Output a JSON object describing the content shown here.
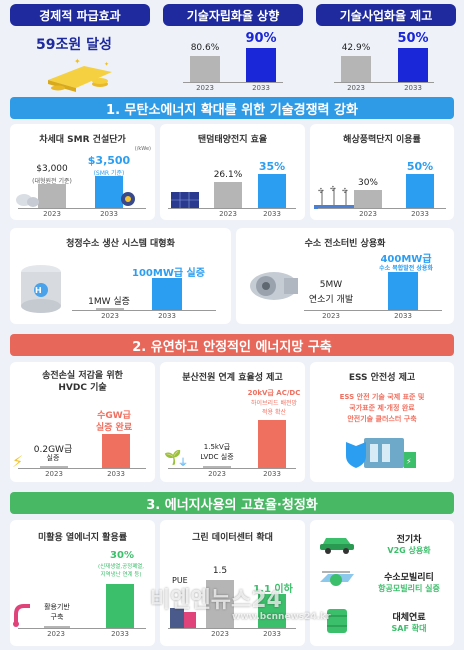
{
  "colors": {
    "navy": "#1e2a9e",
    "blue_band": "#2f9be6",
    "red_band": "#e7685a",
    "green_band": "#49b864",
    "blue_bar": "#2c9ef2",
    "red_bar": "#f07060",
    "green_bar": "#3cbf6b",
    "grey_bar": "#b5b5b5",
    "bright_blue": "#1a27d8"
  },
  "top": {
    "economic": {
      "label": "경제적 파급효과",
      "value": "59조원 달성"
    },
    "independence": {
      "label": "기술자립화율 상향",
      "before": "80.6%",
      "after": "90%",
      "y1": "2023",
      "y2": "2033"
    },
    "commercial": {
      "label": "기술사업화율 제고",
      "before": "42.9%",
      "after": "50%",
      "y1": "2023",
      "y2": "2033"
    }
  },
  "sections": [
    "1. 무탄소에너지 확대를 위한 기술경쟁력 강화",
    "2. 유연하고 안정적인 에너지망 구축",
    "3. 에너지사용의 고효율·청정화"
  ],
  "s1": {
    "smr": {
      "title": "차세대 SMR 건설단가",
      "unit": "(/kWe)",
      "v1": "$3,000",
      "v1_note": "(대형원전 기준)",
      "v2": "$3,500",
      "v2_note": "(SMR 기준)",
      "y1": "2023",
      "y2": "2033"
    },
    "tandem": {
      "title": "탠덤태양전지 효율",
      "v1": "26.1%",
      "v2": "35%",
      "y1": "2023",
      "y2": "2033"
    },
    "offshore": {
      "title": "해상풍력단지 이용률",
      "v1": "30%",
      "v2": "50%",
      "y1": "2023",
      "y2": "2033"
    },
    "hydrogen": {
      "title": "청정수소 생산 시스템 대형화",
      "v1": "1MW 실증",
      "v2": "100MW급 실증",
      "y1": "2023",
      "y2": "2033"
    },
    "turbine": {
      "title": "수소 전소터빈 상용화",
      "v1": "5MW",
      "v1_b": "연소기 개발",
      "v2": "400MW급",
      "v2_b": "수소 복합발전 상용화",
      "y1": "2023",
      "y2": "2033"
    }
  },
  "s2": {
    "hvdc": {
      "title_a": "송전손실 저감을 위한",
      "title_b": "HVDC 기술",
      "v1": "0.2GW급",
      "v1_b": "실증",
      "v2": "수GW급",
      "v2_b": "실증 완료",
      "y1": "2023",
      "y2": "2033"
    },
    "dist": {
      "title": "분산전원 연계 효율성 제고",
      "v1": "1.5kV급",
      "v1_b": "LVDC 실증",
      "v2": "20kV급 AC/DC",
      "v2_b": "하이브리드 배전망",
      "v2_c": "적용 확산",
      "y1": "2023",
      "y2": "2033"
    },
    "ess": {
      "title": "ESS 안전성 제고",
      "l1": "ESS 안전 기술 국제 표준 및",
      "l2": "국가표준 제·개정 완료",
      "l3": "안전기술 클러스터 구축"
    }
  },
  "s3": {
    "heat": {
      "title": "미활용 열에너지 활용률",
      "v1": "활용기반",
      "v1_b": "구축",
      "v2": "30%",
      "v2_b": "(신재생열,공정폐열,",
      "v2_c": "지역냉난 연계 등)",
      "y1": "2023",
      "y2": "2033"
    },
    "dc": {
      "title": "그린 데이터센터 확대",
      "label": "PUE",
      "v1": "1.5",
      "v2": "1.1 이하",
      "y1": "2023",
      "y2": "2033"
    },
    "mob": {
      "ev_title": "전기차",
      "ev_sub": "V2G 상용화",
      "h2_title": "수소모빌리티",
      "h2_sub": "항공모빌리티 실증",
      "saf_title": "대체연료",
      "saf_sub": "SAF 확대"
    }
  },
  "watermark": {
    "name": "비엔엔뉴스24",
    "url": "www.bcnnews24.kr"
  },
  "chart_data": [
    {
      "type": "bar",
      "title": "기술자립화율 상향",
      "categories": [
        "2023",
        "2033"
      ],
      "values": [
        80.6,
        90
      ],
      "ylabel": ""
    },
    {
      "type": "bar",
      "title": "기술사업화율 제고",
      "categories": [
        "2023",
        "2033"
      ],
      "values": [
        42.9,
        50
      ]
    },
    {
      "type": "bar",
      "title": "차세대 SMR 건설단가",
      "categories": [
        "2023",
        "2033"
      ],
      "values": [
        3000,
        3500
      ]
    },
    {
      "type": "bar",
      "title": "탠덤태양전지 효율",
      "categories": [
        "2023",
        "2033"
      ],
      "values": [
        26.1,
        35
      ]
    },
    {
      "type": "bar",
      "title": "해상풍력단지 이용률",
      "categories": [
        "2023",
        "2033"
      ],
      "values": [
        30,
        50
      ]
    },
    {
      "type": "bar",
      "title": "그린 데이터센터 확대",
      "categories": [
        "2023",
        "2033"
      ],
      "values": [
        1.5,
        1.1
      ]
    }
  ]
}
